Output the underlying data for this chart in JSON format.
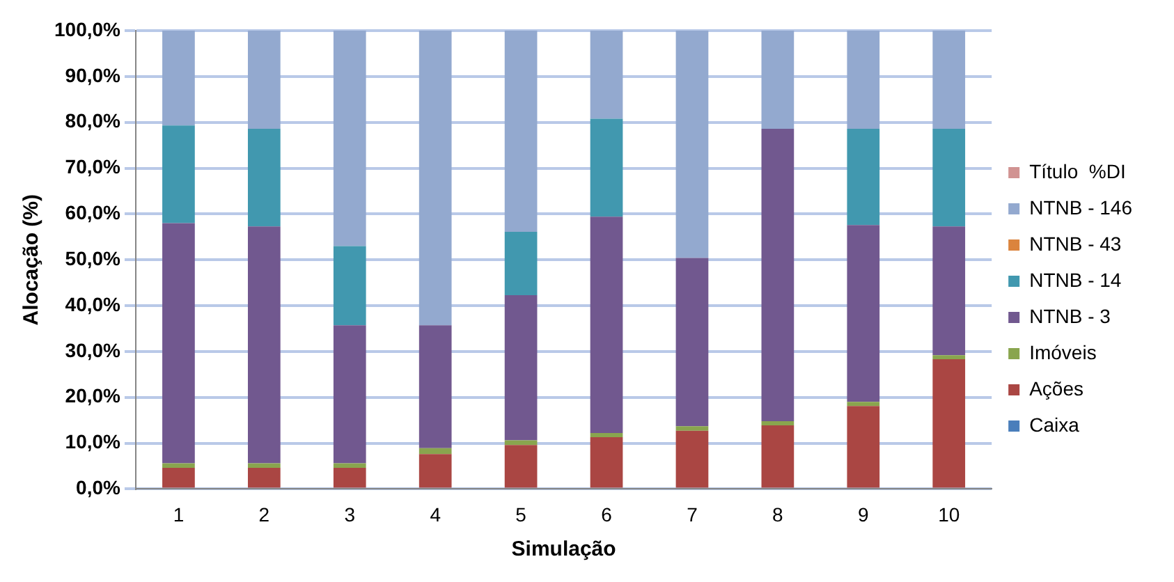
{
  "chart_data": {
    "type": "bar",
    "stacked": true,
    "xlabel": "Simulação",
    "ylabel": "Alocação (%)",
    "categories": [
      "1",
      "2",
      "3",
      "4",
      "5",
      "6",
      "7",
      "8",
      "9",
      "10"
    ],
    "series": [
      {
        "name": "Caixa",
        "color": "#4a7ebb",
        "values": [
          0,
          0,
          0,
          0,
          0,
          0,
          0,
          0,
          0,
          0
        ]
      },
      {
        "name": "Ações",
        "color": "#aa4643",
        "values": [
          4.6,
          4.6,
          4.6,
          7.6,
          9.6,
          11.3,
          12.7,
          13.9,
          18.1,
          28.3
        ]
      },
      {
        "name": "Imóveis",
        "color": "#89a54e",
        "values": [
          1.0,
          1.0,
          1.0,
          1.3,
          1.0,
          0.9,
          1.0,
          0.9,
          0.9,
          0.9
        ]
      },
      {
        "name": "NTNB - 3",
        "color": "#71588f",
        "values": [
          52.4,
          51.7,
          30.1,
          26.8,
          31.7,
          47.2,
          36.7,
          63.8,
          38.6,
          28.1
        ]
      },
      {
        "name": "NTNB - 14",
        "color": "#4198af",
        "values": [
          21.3,
          21.3,
          17.3,
          0,
          13.8,
          21.4,
          0,
          0,
          21.0,
          21.3
        ]
      },
      {
        "name": "NTNB - 43",
        "color": "#db843d",
        "values": [
          0,
          0,
          0,
          0,
          0,
          0,
          0,
          0,
          0,
          0
        ]
      },
      {
        "name": "NTNB - 146",
        "color": "#93a9cf",
        "values": [
          20.7,
          21.4,
          47.0,
          64.3,
          43.9,
          19.2,
          49.6,
          21.4,
          21.4,
          21.4
        ]
      },
      {
        "name": "Título  %DI",
        "color": "#d19392",
        "values": [
          0,
          0,
          0,
          0,
          0,
          0,
          0,
          0,
          0,
          0
        ]
      }
    ],
    "ylim": [
      0,
      100
    ],
    "yticks": [
      {
        "value": 0,
        "label": "0,0%"
      },
      {
        "value": 10,
        "label": "10,0%"
      },
      {
        "value": 20,
        "label": "20,0%"
      },
      {
        "value": 30,
        "label": "30,0%"
      },
      {
        "value": 40,
        "label": "40,0%"
      },
      {
        "value": 50,
        "label": "50,0%"
      },
      {
        "value": 60,
        "label": "60,0%"
      },
      {
        "value": 70,
        "label": "70,0%"
      },
      {
        "value": 80,
        "label": "80,0%"
      },
      {
        "value": 90,
        "label": "90,0%"
      },
      {
        "value": 100,
        "label": "100,0%"
      }
    ],
    "grid": "y",
    "legend": "right"
  }
}
